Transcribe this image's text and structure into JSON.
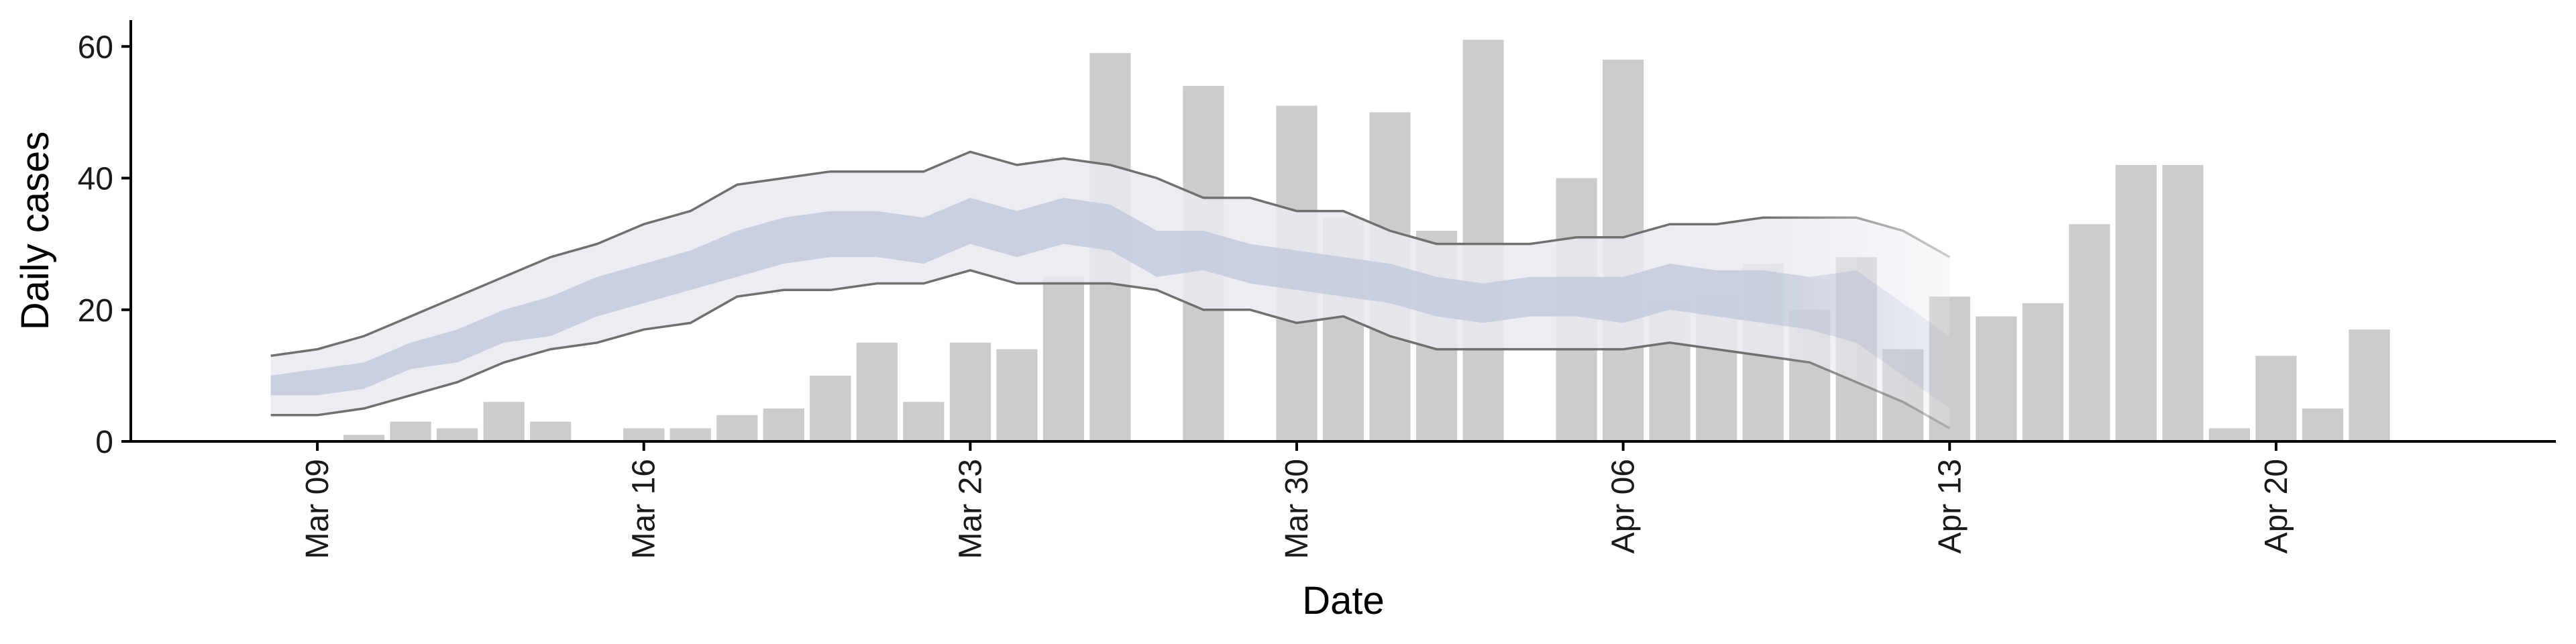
{
  "chart_data": {
    "type": "bar",
    "xlabel": "Date",
    "ylabel": "Daily cases",
    "ylim": [
      0,
      64
    ],
    "y_ticks": [
      0,
      20,
      40,
      60
    ],
    "x_ticks": [
      {
        "date": "2020-03-09",
        "label": "Mar 09"
      },
      {
        "date": "2020-03-16",
        "label": "Mar 16"
      },
      {
        "date": "2020-03-23",
        "label": "Mar 23"
      },
      {
        "date": "2020-03-30",
        "label": "Mar 30"
      },
      {
        "date": "2020-04-06",
        "label": "Apr 06"
      },
      {
        "date": "2020-04-13",
        "label": "Apr 13"
      },
      {
        "date": "2020-04-20",
        "label": "Apr 20"
      }
    ],
    "xlim": [
      "2020-03-05",
      "2020-04-26"
    ],
    "grid": false,
    "colors": {
      "bars": "#cccccc",
      "band_outer": "#e9eaf1",
      "band_inner": "#c5cbdd",
      "bound_line": "#707070"
    },
    "bars": [
      {
        "date": "2020-03-10",
        "value": 1
      },
      {
        "date": "2020-03-11",
        "value": 3
      },
      {
        "date": "2020-03-12",
        "value": 2
      },
      {
        "date": "2020-03-13",
        "value": 6
      },
      {
        "date": "2020-03-14",
        "value": 3
      },
      {
        "date": "2020-03-16",
        "value": 2
      },
      {
        "date": "2020-03-17",
        "value": 2
      },
      {
        "date": "2020-03-18",
        "value": 4
      },
      {
        "date": "2020-03-19",
        "value": 5
      },
      {
        "date": "2020-03-20",
        "value": 10
      },
      {
        "date": "2020-03-21",
        "value": 15
      },
      {
        "date": "2020-03-22",
        "value": 6
      },
      {
        "date": "2020-03-23",
        "value": 15
      },
      {
        "date": "2020-03-24",
        "value": 14
      },
      {
        "date": "2020-03-25",
        "value": 25
      },
      {
        "date": "2020-03-26",
        "value": 59
      },
      {
        "date": "2020-03-28",
        "value": 54
      },
      {
        "date": "2020-03-30",
        "value": 51
      },
      {
        "date": "2020-03-31",
        "value": 34
      },
      {
        "date": "2020-04-01",
        "value": 50
      },
      {
        "date": "2020-04-02",
        "value": 32
      },
      {
        "date": "2020-04-03",
        "value": 61
      },
      {
        "date": "2020-04-05",
        "value": 40
      },
      {
        "date": "2020-04-06",
        "value": 58
      },
      {
        "date": "2020-04-07",
        "value": 21
      },
      {
        "date": "2020-04-08",
        "value": 22
      },
      {
        "date": "2020-04-09",
        "value": 27
      },
      {
        "date": "2020-04-10",
        "value": 20
      },
      {
        "date": "2020-04-11",
        "value": 28
      },
      {
        "date": "2020-04-12",
        "value": 14
      },
      {
        "date": "2020-04-13",
        "value": 22
      },
      {
        "date": "2020-04-14",
        "value": 19
      },
      {
        "date": "2020-04-15",
        "value": 21
      },
      {
        "date": "2020-04-16",
        "value": 33
      },
      {
        "date": "2020-04-17",
        "value": 42
      },
      {
        "date": "2020-04-18",
        "value": 42
      },
      {
        "date": "2020-04-19",
        "value": 2
      },
      {
        "date": "2020-04-20",
        "value": 13
      },
      {
        "date": "2020-04-21",
        "value": 5
      },
      {
        "date": "2020-04-22",
        "value": 17
      }
    ],
    "dates": [
      "2020-03-08",
      "2020-03-09",
      "2020-03-10",
      "2020-03-11",
      "2020-03-12",
      "2020-03-13",
      "2020-03-14",
      "2020-03-15",
      "2020-03-16",
      "2020-03-17",
      "2020-03-18",
      "2020-03-19",
      "2020-03-20",
      "2020-03-21",
      "2020-03-22",
      "2020-03-23",
      "2020-03-24",
      "2020-03-25",
      "2020-03-26",
      "2020-03-27",
      "2020-03-28",
      "2020-03-29",
      "2020-03-30",
      "2020-03-31",
      "2020-04-01",
      "2020-04-02",
      "2020-04-03",
      "2020-04-04",
      "2020-04-05",
      "2020-04-06",
      "2020-04-07",
      "2020-04-08",
      "2020-04-09",
      "2020-04-10",
      "2020-04-11",
      "2020-04-12",
      "2020-04-13"
    ],
    "outer_upper": [
      13,
      14,
      16,
      19,
      22,
      25,
      28,
      30,
      33,
      35,
      39,
      40,
      41,
      41,
      41,
      44,
      42,
      43,
      42,
      40,
      37,
      37,
      35,
      35,
      32,
      30,
      30,
      30,
      31,
      31,
      33,
      33,
      34,
      34,
      34,
      32,
      28
    ],
    "outer_lower": [
      4,
      4,
      5,
      7,
      9,
      12,
      14,
      15,
      17,
      18,
      22,
      23,
      23,
      24,
      24,
      26,
      24,
      24,
      24,
      23,
      20,
      20,
      18,
      19,
      16,
      14,
      14,
      14,
      14,
      14,
      15,
      14,
      13,
      12,
      9,
      6,
      2
    ],
    "inner_upper": [
      10,
      11,
      12,
      15,
      17,
      20,
      22,
      25,
      27,
      29,
      32,
      34,
      35,
      35,
      34,
      37,
      35,
      37,
      36,
      32,
      32,
      30,
      29,
      28,
      27,
      25,
      24,
      25,
      25,
      25,
      27,
      26,
      26,
      25,
      26,
      21,
      16
    ],
    "inner_lower": [
      7,
      7,
      8,
      11,
      12,
      15,
      16,
      19,
      21,
      23,
      25,
      27,
      28,
      28,
      27,
      30,
      28,
      30,
      29,
      25,
      26,
      24,
      23,
      22,
      21,
      19,
      18,
      19,
      19,
      18,
      20,
      19,
      18,
      17,
      15,
      10,
      5
    ],
    "fade_from": "2020-04-09"
  }
}
